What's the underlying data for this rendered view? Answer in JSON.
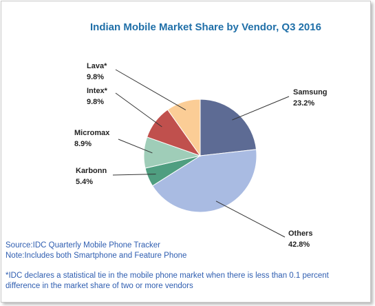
{
  "chart_data": {
    "type": "pie",
    "title": "Indian Mobile Market Share by Vendor, Q3 2016",
    "categories": [
      "Samsung",
      "Others",
      "Karbonn",
      "Micromax",
      "Intex*",
      "Lava*"
    ],
    "values": [
      23.2,
      42.8,
      5.4,
      8.9,
      9.8,
      9.8
    ],
    "value_labels": [
      "23.2%",
      "42.8%",
      "5.4%",
      "8.9%",
      "9.8%",
      "9.8%"
    ],
    "colors": [
      "#5d6b94",
      "#a9bbe2",
      "#4f9e80",
      "#9fcdb8",
      "#c0504d",
      "#fbcd96"
    ],
    "source": "Source:IDC Quarterly Mobile Phone Tracker",
    "note": "Note:Includes both Smartphone and Feature Phone",
    "footnote": "*IDC declares a statistical tie in the mobile phone market when there is less than 0.1 percent difference in the market share of two or more vendors"
  }
}
